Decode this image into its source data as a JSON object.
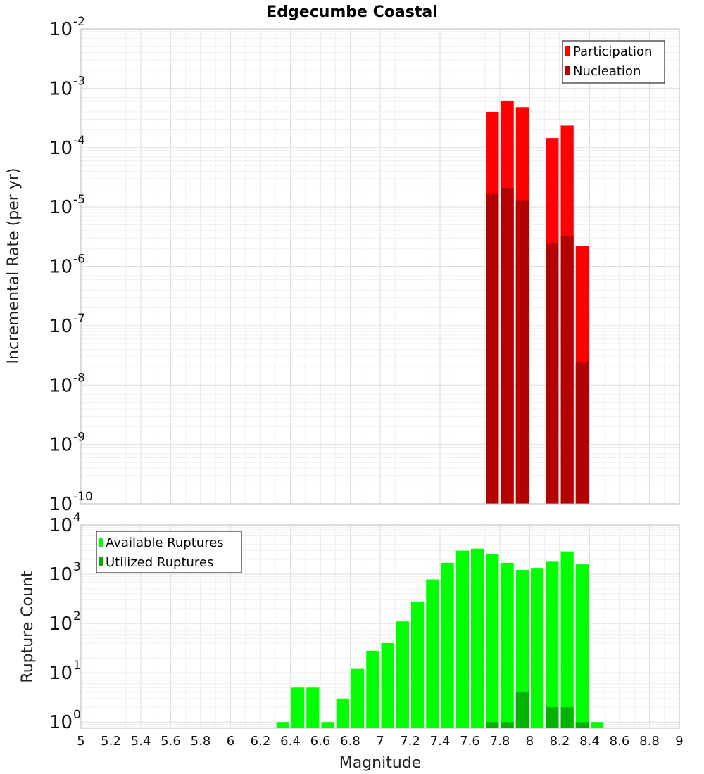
{
  "chart_data": [
    {
      "type": "bar",
      "title": "Edgecumbe Coastal",
      "xlabel": "",
      "ylabel": "Incremental Rate (per yr)",
      "yscale": "log",
      "ylim": [
        1e-10,
        0.01
      ],
      "xlim": [
        5,
        9
      ],
      "grid": true,
      "legend_position": "top-right",
      "legend": [
        "Participation",
        "Nucleation"
      ],
      "y_tick_base": "10",
      "y_tick_exponents": [
        "-10",
        "-9",
        "-8",
        "-7",
        "-6",
        "-5",
        "-4",
        "-3",
        "-2"
      ],
      "bin_width": 0.1,
      "series": [
        {
          "name": "Participation",
          "color": "#ff0000",
          "x": [
            7.75,
            7.85,
            7.95,
            8.15,
            8.25,
            8.35
          ],
          "values": [
            0.0004,
            0.00062,
            0.00048,
            0.000145,
            0.000235,
            2.2e-06
          ]
        },
        {
          "name": "Nucleation",
          "color": "#b30000",
          "x": [
            7.75,
            7.85,
            7.95,
            8.15,
            8.25,
            8.35
          ],
          "values": [
            1.7e-05,
            2.1e-05,
            1.3e-05,
            2.4e-06,
            3.2e-06,
            2.4e-08
          ]
        }
      ]
    },
    {
      "type": "bar",
      "title": "",
      "xlabel": "Magnitude",
      "ylabel": "Rupture Count",
      "yscale": "log",
      "ylim": [
        0.75,
        10000
      ],
      "xlim": [
        5,
        9
      ],
      "grid": true,
      "legend_position": "top-left",
      "legend": [
        "Available Ruptures",
        "Utilized Ruptures"
      ],
      "y_tick_base": "10",
      "y_tick_exponents": [
        "0",
        "1",
        "2",
        "3",
        "4"
      ],
      "x_tick_labels": [
        "5",
        "5.2",
        "5.4",
        "5.6",
        "5.8",
        "6",
        "6.2",
        "6.4",
        "6.6",
        "6.8",
        "7",
        "7.2",
        "7.4",
        "7.6",
        "7.8",
        "8",
        "8.2",
        "8.4",
        "8.6",
        "8.8",
        "9"
      ],
      "bin_width": 0.1,
      "series": [
        {
          "name": "Available Ruptures",
          "color": "#00ff00",
          "x": [
            6.35,
            6.45,
            6.55,
            6.65,
            6.75,
            6.85,
            6.95,
            7.05,
            7.15,
            7.25,
            7.35,
            7.45,
            7.55,
            7.65,
            7.75,
            7.85,
            7.95,
            8.05,
            8.15,
            8.25,
            8.35,
            8.45
          ],
          "values": [
            1,
            5,
            5,
            1,
            3,
            12,
            28,
            40,
            110,
            280,
            780,
            1700,
            3000,
            3300,
            2550,
            1700,
            1220,
            1340,
            1850,
            2900,
            1580,
            1
          ]
        },
        {
          "name": "Utilized Ruptures",
          "color": "#00b300",
          "x": [
            7.75,
            7.85,
            7.95,
            8.15,
            8.25,
            8.35
          ],
          "values": [
            1,
            1,
            4,
            2,
            2,
            1
          ]
        }
      ]
    }
  ]
}
